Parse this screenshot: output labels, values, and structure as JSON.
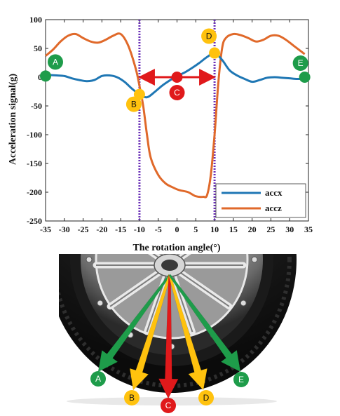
{
  "chart_data": {
    "type": "line",
    "xlabel": "The rotation angle(°)",
    "ylabel": "Acceleration signal(g)",
    "xlim": [
      -35,
      35
    ],
    "ylim": [
      -250,
      100
    ],
    "xticks": [
      -35,
      -30,
      -25,
      -20,
      -15,
      -10,
      -5,
      0,
      5,
      10,
      15,
      20,
      25,
      30,
      35
    ],
    "yticks": [
      100,
      50,
      0,
      -50,
      -100,
      -150,
      -200,
      -250
    ],
    "legend_position": "bottom-right",
    "series": [
      {
        "name": "accx",
        "color": "#1f77b4",
        "x": [
          -35,
          -32,
          -30,
          -28,
          -26,
          -24,
          -22,
          -20,
          -18,
          -16,
          -14,
          -12,
          -10,
          -8,
          -6,
          -4,
          -2,
          0,
          2,
          4,
          6,
          8,
          10,
          12,
          14,
          16,
          18,
          20,
          22,
          24,
          26,
          28,
          30,
          32,
          34
        ],
        "y": [
          4,
          3,
          2,
          -2,
          -5,
          -7,
          -5,
          2,
          3,
          0,
          -8,
          -20,
          -30,
          -35,
          -26,
          -15,
          -6,
          2,
          8,
          16,
          25,
          35,
          42,
          30,
          12,
          3,
          -3,
          -8,
          -5,
          -1,
          0,
          -1,
          -2,
          -3,
          -3
        ]
      },
      {
        "name": "accz",
        "color": "#e0692a",
        "x": [
          -35,
          -33,
          -31,
          -29,
          -27,
          -25,
          -23,
          -21,
          -19,
          -17,
          -15,
          -13,
          -11,
          -10,
          -9,
          -8,
          -7,
          -5,
          -3,
          -1,
          0,
          1,
          3,
          5,
          7,
          8,
          9,
          10,
          11,
          12,
          13,
          15,
          17,
          19,
          21,
          23,
          25,
          27,
          29,
          31,
          33,
          34
        ],
        "y": [
          37,
          48,
          62,
          72,
          75,
          68,
          62,
          60,
          65,
          72,
          75,
          55,
          15,
          -15,
          -50,
          -100,
          -140,
          -170,
          -185,
          -192,
          -195,
          -197,
          -200,
          -207,
          -208,
          -205,
          -170,
          -100,
          -10,
          50,
          68,
          75,
          73,
          68,
          62,
          65,
          72,
          72,
          65,
          55,
          45,
          40
        ]
      }
    ],
    "vertical_lines": [
      -10,
      10
    ],
    "arrow_range": [
      -10,
      10
    ],
    "markers": [
      {
        "label": "A",
        "x": -35,
        "y": 2,
        "color": "#1e9c4a"
      },
      {
        "label": "B",
        "x": -10,
        "y": -30,
        "color": "#ffc20e"
      },
      {
        "label": "C",
        "x": 0,
        "y": 0,
        "color": "#e0191b"
      },
      {
        "label": "D",
        "x": 10,
        "y": 42,
        "color": "#ffc20e"
      },
      {
        "label": "E",
        "x": 34,
        "y": 0,
        "color": "#1e9c4a"
      }
    ]
  },
  "wheel_labels": [
    "A",
    "B",
    "C",
    "D",
    "E"
  ],
  "colors": {
    "green": "#1e9c4a",
    "yellow": "#ffc20e",
    "red": "#e0191b",
    "vline": "#6a2fb8",
    "arrow_red": "#e0191b"
  }
}
